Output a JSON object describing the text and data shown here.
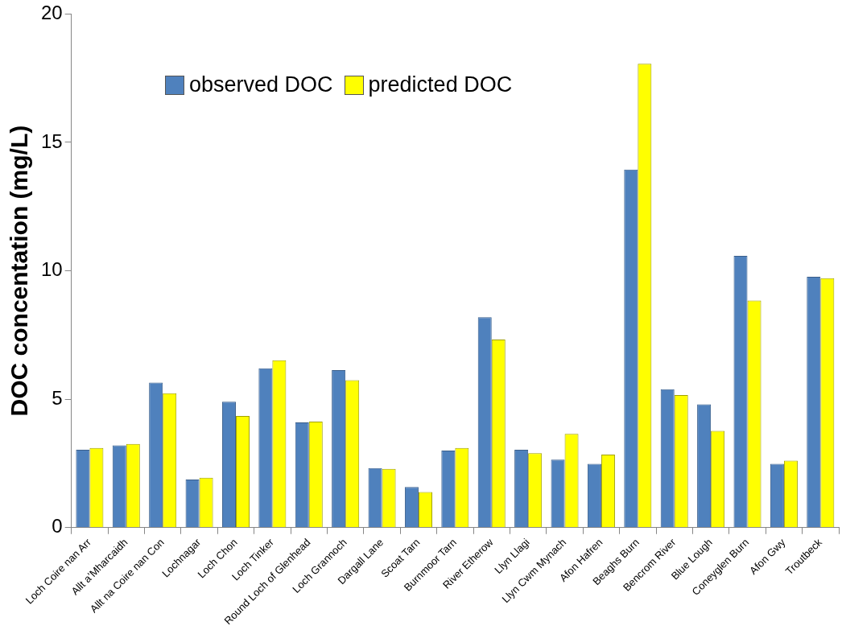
{
  "chart_data": {
    "type": "bar",
    "ylabel": "DOC concentation (mg/L)",
    "categories": [
      "Loch Coire nan Arr",
      "Allt a’Mharcaidh",
      "Allt na Coire nan Con",
      "Lochnagar",
      "Loch Chon",
      "Loch Tinker",
      "Round Loch of Glenhead",
      "Loch Grannoch",
      "Dargall Lane",
      "Scoat Tarn",
      "Burnmoor Tarn",
      "River Etherow",
      "Llyn Llagi",
      "Llyn Cwm Mynach",
      "Afon Hafren",
      "Beaghs Burn",
      "Bencrom River",
      "Blue Lough",
      "Coneyglen Burn",
      "Afon Gwy",
      "Troutbeck"
    ],
    "series": [
      {
        "name": "observed DOC",
        "color": "#4f81bd",
        "values": [
          3.03,
          3.2,
          5.65,
          1.87,
          4.9,
          6.2,
          4.1,
          6.13,
          2.32,
          1.58,
          3.0,
          8.19,
          3.03,
          2.65,
          2.48,
          13.94,
          5.39,
          4.8,
          10.58,
          2.48,
          9.77
        ]
      },
      {
        "name": "predicted DOC",
        "color": "#ffff00",
        "values": [
          3.1,
          3.26,
          5.23,
          1.94,
          4.35,
          6.52,
          4.13,
          5.74,
          2.29,
          1.39,
          3.1,
          7.32,
          2.9,
          3.65,
          2.84,
          18.06,
          5.16,
          3.77,
          8.84,
          2.61,
          9.71
        ]
      }
    ],
    "ylim": [
      0,
      20
    ],
    "yticks": [
      0,
      5,
      10,
      15,
      20
    ],
    "grid": false,
    "legend": "top left"
  }
}
